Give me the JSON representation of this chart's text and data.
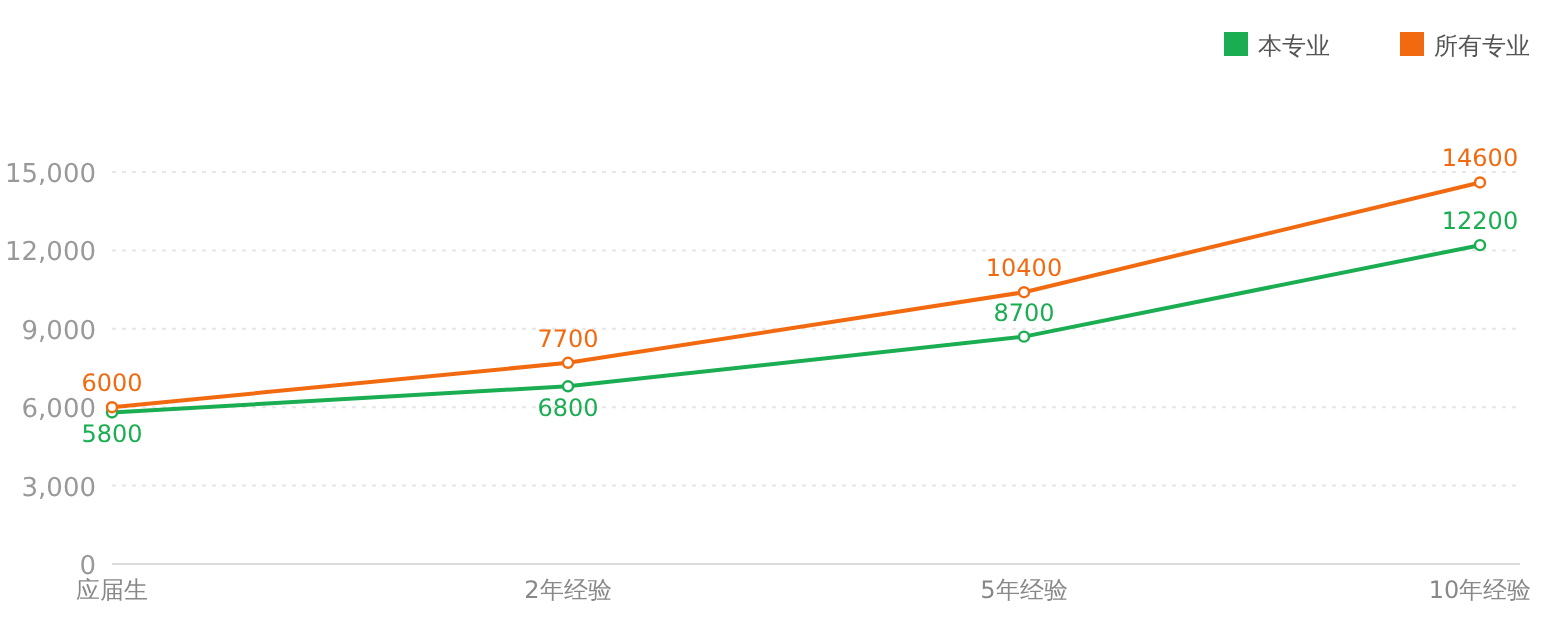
{
  "chart_data": {
    "type": "line",
    "categories": [
      "应届生",
      "2年经验",
      "5年经验",
      "10年经验"
    ],
    "series": [
      {
        "name": "本专业",
        "color": "#1aad52",
        "values": [
          5800,
          6800,
          8700,
          12200
        ]
      },
      {
        "name": "所有专业",
        "color": "#f26a10",
        "values": [
          6000,
          7700,
          10400,
          14600
        ]
      }
    ],
    "ylim": [
      0,
      15000
    ],
    "yticks": [
      {
        "value": 0,
        "label": "0"
      },
      {
        "value": 3000,
        "label": "3,000"
      },
      {
        "value": 6000,
        "label": "6,000"
      },
      {
        "value": 9000,
        "label": "9,000"
      },
      {
        "value": 12000,
        "label": "12,000"
      },
      {
        "value": 15000,
        "label": "15,000"
      }
    ],
    "grid": "y",
    "legend": "top right",
    "marker": "circle",
    "data_labels": true
  }
}
